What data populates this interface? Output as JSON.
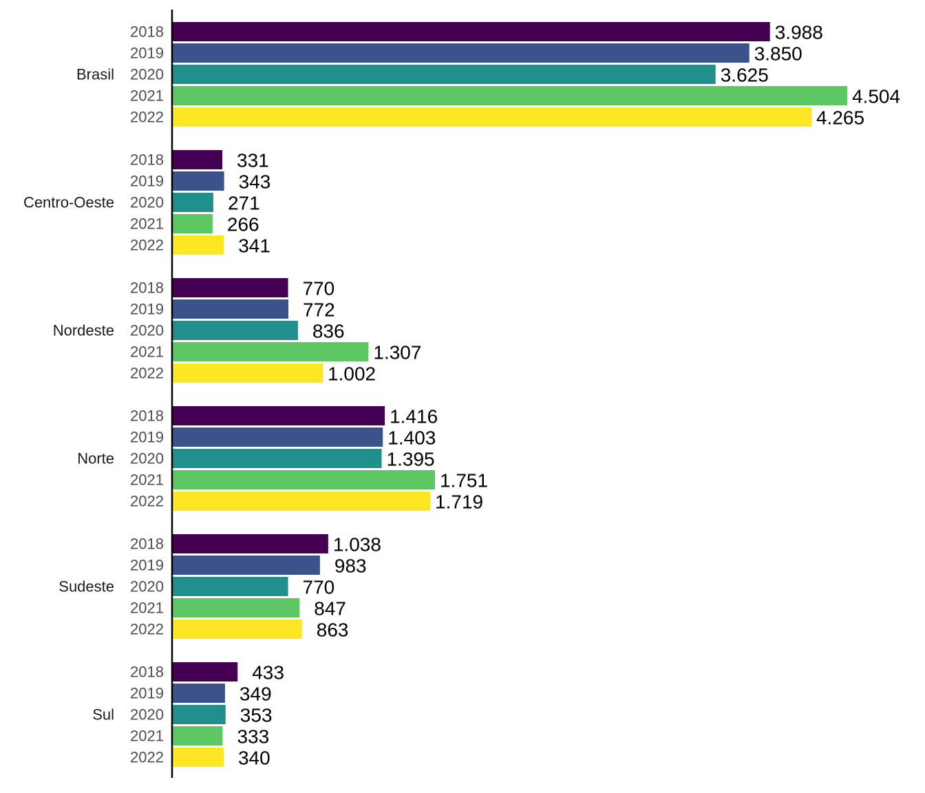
{
  "chart_data": {
    "type": "bar",
    "orientation": "horizontal",
    "title": "",
    "xlabel": "",
    "ylabel": "",
    "grid": false,
    "legend": "none",
    "xlim": [
      0,
      4504
    ],
    "series_colors": {
      "2018": "#440154",
      "2019": "#3b528b",
      "2020": "#21908c",
      "2021": "#5dc863",
      "2022": "#fde725"
    },
    "groups": [
      {
        "name": "Brasil",
        "bars": [
          {
            "year": "2018",
            "value": 3988,
            "label": "3.988"
          },
          {
            "year": "2019",
            "value": 3850,
            "label": "3.850"
          },
          {
            "year": "2020",
            "value": 3625,
            "label": "3.625"
          },
          {
            "year": "2021",
            "value": 4504,
            "label": "4.504"
          },
          {
            "year": "2022",
            "value": 4265,
            "label": "4.265"
          }
        ]
      },
      {
        "name": "Centro-Oeste",
        "bars": [
          {
            "year": "2018",
            "value": 331,
            "label": "331"
          },
          {
            "year": "2019",
            "value": 343,
            "label": "343"
          },
          {
            "year": "2020",
            "value": 271,
            "label": "271"
          },
          {
            "year": "2021",
            "value": 266,
            "label": "266"
          },
          {
            "year": "2022",
            "value": 341,
            "label": "341"
          }
        ]
      },
      {
        "name": "Nordeste",
        "bars": [
          {
            "year": "2018",
            "value": 770,
            "label": "770"
          },
          {
            "year": "2019",
            "value": 772,
            "label": "772"
          },
          {
            "year": "2020",
            "value": 836,
            "label": "836"
          },
          {
            "year": "2021",
            "value": 1307,
            "label": "1.307"
          },
          {
            "year": "2022",
            "value": 1002,
            "label": "1.002"
          }
        ]
      },
      {
        "name": "Norte",
        "bars": [
          {
            "year": "2018",
            "value": 1416,
            "label": "1.416"
          },
          {
            "year": "2019",
            "value": 1403,
            "label": "1.403"
          },
          {
            "year": "2020",
            "value": 1395,
            "label": "1.395"
          },
          {
            "year": "2021",
            "value": 1751,
            "label": "1.751"
          },
          {
            "year": "2022",
            "value": 1719,
            "label": "1.719"
          }
        ]
      },
      {
        "name": "Sudeste",
        "bars": [
          {
            "year": "2018",
            "value": 1038,
            "label": "1.038"
          },
          {
            "year": "2019",
            "value": 983,
            "label": "983"
          },
          {
            "year": "2020",
            "value": 770,
            "label": "770"
          },
          {
            "year": "2021",
            "value": 847,
            "label": "847"
          },
          {
            "year": "2022",
            "value": 863,
            "label": "863"
          }
        ]
      },
      {
        "name": "Sul",
        "bars": [
          {
            "year": "2018",
            "value": 433,
            "label": "433"
          },
          {
            "year": "2019",
            "value": 349,
            "label": "349"
          },
          {
            "year": "2020",
            "value": 353,
            "label": "353"
          },
          {
            "year": "2021",
            "value": 333,
            "label": "333"
          },
          {
            "year": "2022",
            "value": 340,
            "label": "340"
          }
        ]
      }
    ]
  }
}
